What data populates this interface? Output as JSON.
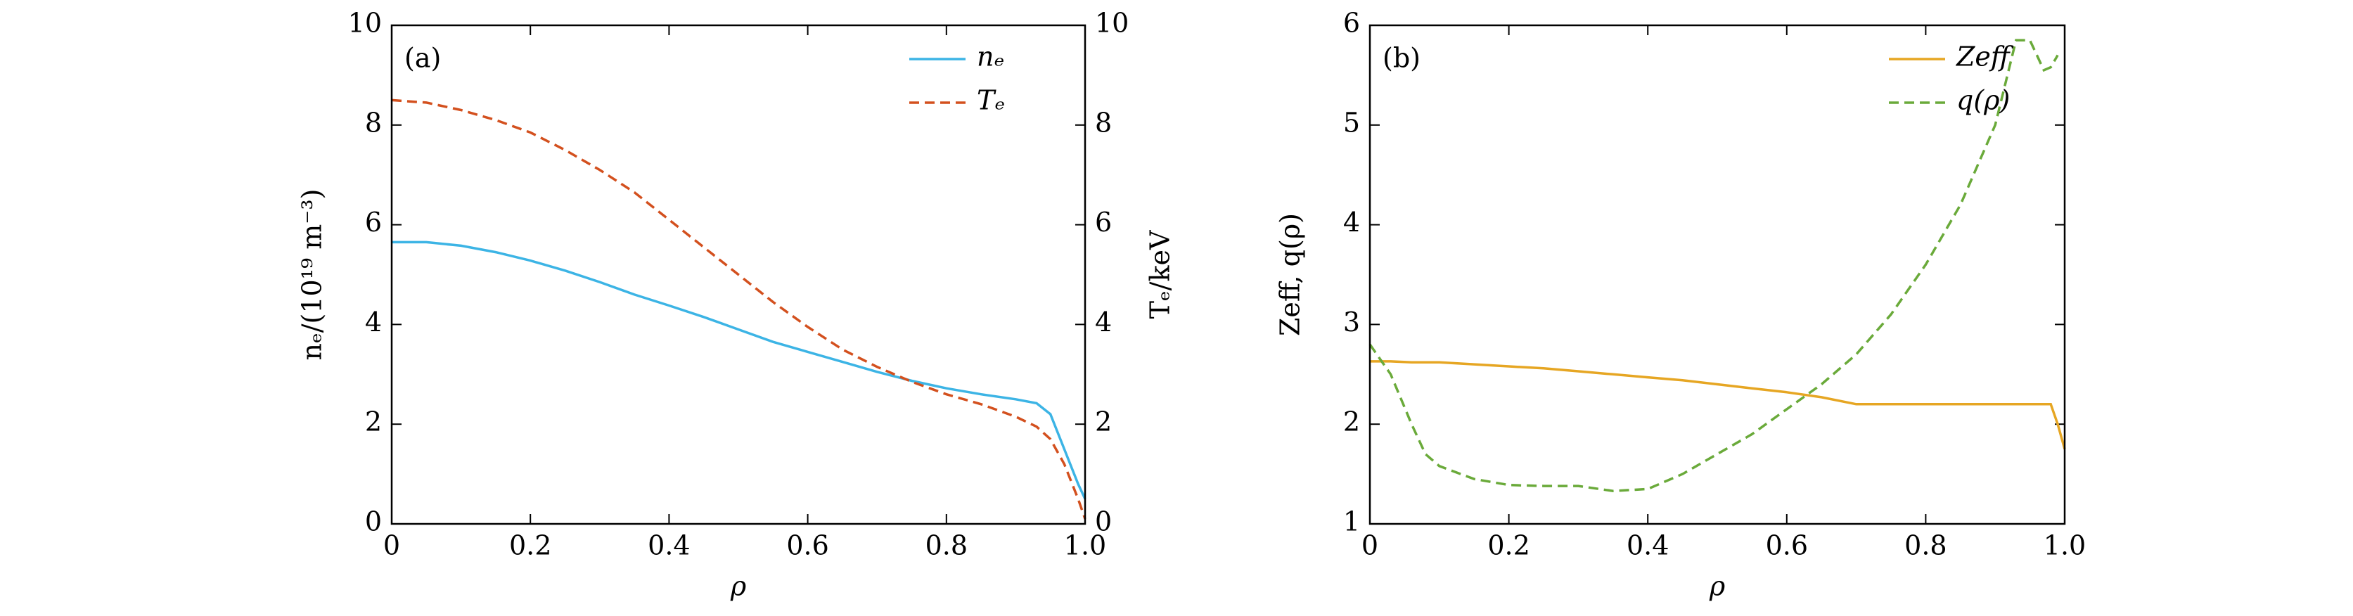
{
  "chart_data": [
    {
      "type": "line",
      "panel_label": "(a)",
      "xlabel": "ρ",
      "ylabel": "nₑ/(10¹⁹ m⁻³)",
      "y2label": "Tₑ/keV",
      "x": [
        0,
        0.05,
        0.1,
        0.15,
        0.2,
        0.25,
        0.3,
        0.35,
        0.4,
        0.45,
        0.5,
        0.55,
        0.6,
        0.65,
        0.7,
        0.75,
        0.8,
        0.85,
        0.9,
        0.93,
        0.95,
        0.97,
        0.99,
        1.0
      ],
      "series": [
        {
          "name": "nₑ",
          "color": "#3cb4e5",
          "dashed": false,
          "values": [
            5.65,
            5.65,
            5.58,
            5.45,
            5.28,
            5.08,
            4.85,
            4.6,
            4.38,
            4.15,
            3.9,
            3.65,
            3.45,
            3.25,
            3.05,
            2.87,
            2.72,
            2.6,
            2.5,
            2.42,
            2.2,
            1.5,
            0.8,
            0.5
          ]
        },
        {
          "name": "Tₑ",
          "color": "#d3501e",
          "dashed": true,
          "axis": "y2",
          "values": [
            8.5,
            8.45,
            8.3,
            8.1,
            7.85,
            7.5,
            7.1,
            6.65,
            6.1,
            5.55,
            5.0,
            4.45,
            3.95,
            3.5,
            3.15,
            2.85,
            2.6,
            2.4,
            2.15,
            1.95,
            1.7,
            1.2,
            0.5,
            0.1
          ]
        }
      ],
      "xlim": [
        0,
        1
      ],
      "xticks": [
        0,
        0.2,
        0.4,
        0.6,
        0.8,
        {
          "value": 1,
          "label": "1.0"
        }
      ],
      "ylim": [
        0,
        10
      ],
      "yticks": [
        0,
        2,
        4,
        6,
        8,
        10
      ],
      "y2lim": [
        0,
        10
      ],
      "y2ticks": [
        0,
        2,
        4,
        6,
        8,
        10
      ],
      "legend": "upper right"
    },
    {
      "type": "line",
      "panel_label": "(b)",
      "xlabel": "ρ",
      "ylabel": "Zeff, q(ρ)",
      "x": [
        0,
        0.03,
        0.06,
        0.08,
        0.1,
        0.15,
        0.2,
        0.25,
        0.3,
        0.35,
        0.4,
        0.45,
        0.5,
        0.55,
        0.6,
        0.65,
        0.7,
        0.75,
        0.8,
        0.85,
        0.9,
        0.93,
        0.95,
        0.97,
        0.98,
        0.99,
        1.0
      ],
      "series": [
        {
          "name": "Zeff",
          "color": "#e6a623",
          "dashed": false,
          "values": [
            2.63,
            2.63,
            2.62,
            2.62,
            2.62,
            2.6,
            2.58,
            2.56,
            2.53,
            2.5,
            2.47,
            2.44,
            2.4,
            2.36,
            2.32,
            2.27,
            2.2,
            2.2,
            2.2,
            2.2,
            2.2,
            2.2,
            2.2,
            2.2,
            2.2,
            2.0,
            1.75
          ]
        },
        {
          "name": "q(ρ)",
          "color": "#6aaa3a",
          "dashed": true,
          "values": [
            2.8,
            2.5,
            2.0,
            1.7,
            1.58,
            1.45,
            1.39,
            1.38,
            1.38,
            1.33,
            1.35,
            1.5,
            1.7,
            1.9,
            2.15,
            2.4,
            2.7,
            3.1,
            3.6,
            4.2,
            5.0,
            5.85,
            5.85,
            5.55,
            5.58,
            5.7,
            null
          ]
        }
      ],
      "xlim": [
        0,
        1
      ],
      "xticks": [
        0,
        0.2,
        0.4,
        0.6,
        0.8,
        {
          "value": 1,
          "label": "1.0"
        }
      ],
      "ylim": [
        1,
        6
      ],
      "yticks": [
        1,
        2,
        3,
        4,
        5,
        6
      ],
      "legend": "upper right"
    }
  ]
}
